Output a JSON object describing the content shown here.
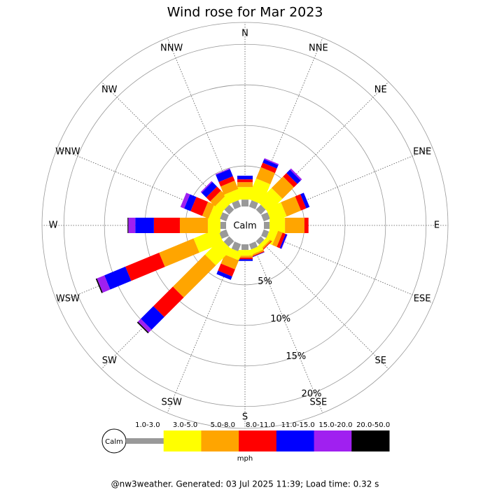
{
  "chart_data": {
    "type": "windrose",
    "title": "Wind rose for Mar 2023",
    "directions": [
      "N",
      "NNE",
      "NE",
      "ENE",
      "E",
      "ESE",
      "SE",
      "SSE",
      "S",
      "SSW",
      "SW",
      "WSW",
      "W",
      "WNW",
      "NW",
      "NNW"
    ],
    "series": [
      {
        "name": "1.0-3.0",
        "color": "#999999",
        "values": [
          0.85,
          0.85,
          0.85,
          0.85,
          0.7,
          0.7,
          0.6,
          0.7,
          0.7,
          0.95,
          0.95,
          0.95,
          0.7,
          0.85,
          0.85,
          0.85
        ]
      },
      {
        "name": "3.0-5.0",
        "color": "#ffff00",
        "values": [
          1.55,
          2.7,
          2.4,
          2.0,
          1.9,
          1.0,
          0.5,
          0.6,
          0.7,
          1.0,
          2.75,
          3.2,
          1.55,
          1.3,
          1.1,
          1.3
        ]
      },
      {
        "name": "5.0-8.0",
        "color": "#ffa500",
        "values": [
          0.6,
          1.5,
          2.0,
          1.9,
          2.4,
          0.6,
          0.2,
          0.2,
          0.25,
          1.2,
          5.6,
          4.6,
          3.45,
          0.85,
          0.85,
          1.1
        ]
      },
      {
        "name": "8.0-11.0",
        "color": "#ff0000",
        "values": [
          0.35,
          0.6,
          0.6,
          0.7,
          0.5,
          0.4,
          0.1,
          0.1,
          0.2,
          0.95,
          3.4,
          4.5,
          3.2,
          1.55,
          0.7,
          0.6
        ]
      },
      {
        "name": "11.0-15.0",
        "color": "#0000ff",
        "values": [
          0.45,
          0.45,
          0.6,
          0.45,
          0,
          0.2,
          0,
          0.05,
          0.2,
          0.45,
          2.2,
          2.8,
          2.3,
          0.85,
          0.8,
          0.95
        ]
      },
      {
        "name": "15.0-20.0",
        "color": "#a020f0",
        "values": [
          0,
          0.15,
          0.2,
          0,
          0,
          0.05,
          0,
          0,
          0,
          0,
          0.5,
          1.0,
          0.85,
          0.5,
          0.15,
          0.1
        ]
      },
      {
        "name": "20.0-50.0",
        "color": "#000000",
        "values": [
          0,
          0,
          0,
          0,
          0,
          0,
          0,
          0,
          0,
          0,
          0.15,
          0.15,
          0.1,
          0,
          0,
          0
        ]
      }
    ],
    "rlim": [
      0,
      22.7
    ],
    "rticks": [
      {
        "value": 5,
        "label": "5%"
      },
      {
        "value": 10,
        "label": "10%"
      },
      {
        "value": 15,
        "label": "15%"
      },
      {
        "value": 20,
        "label": "20%"
      }
    ],
    "calm_label": "Calm",
    "units": "mph"
  },
  "footer": "@nw3weather. Generated: 03 Jul 2025 11:39; Load time: 0.32 s"
}
